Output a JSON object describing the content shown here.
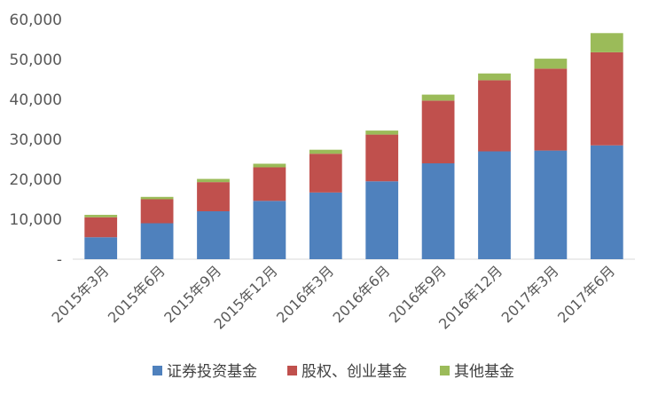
{
  "chart_data": {
    "type": "bar",
    "stacked": true,
    "categories": [
      "2015年3月",
      "2015年6月",
      "2015年9月",
      "2015年12月",
      "2016年3月",
      "2016年6月",
      "2016年9月",
      "2016年12月",
      "2017年3月",
      "2017年6月"
    ],
    "series": [
      {
        "name": "证券投资基金",
        "color": "#4F81BD",
        "values": [
          5500,
          9000,
          12000,
          14600,
          16700,
          19500,
          24000,
          27000,
          27200,
          28500
        ]
      },
      {
        "name": "股权、创业基金",
        "color": "#C0504D",
        "values": [
          5000,
          6000,
          7300,
          8400,
          9700,
          11700,
          15700,
          17800,
          20500,
          23300
        ]
      },
      {
        "name": "其他基金",
        "color": "#9BBB59",
        "values": [
          600,
          600,
          800,
          900,
          1000,
          1000,
          1500,
          1700,
          2500,
          4800
        ]
      }
    ],
    "yticks": [
      "-",
      "10,000",
      "20,000",
      "30,000",
      "40,000",
      "50,000",
      "60,000"
    ],
    "ylim": [
      0,
      60000
    ],
    "grid": false,
    "legend": "bottom"
  }
}
